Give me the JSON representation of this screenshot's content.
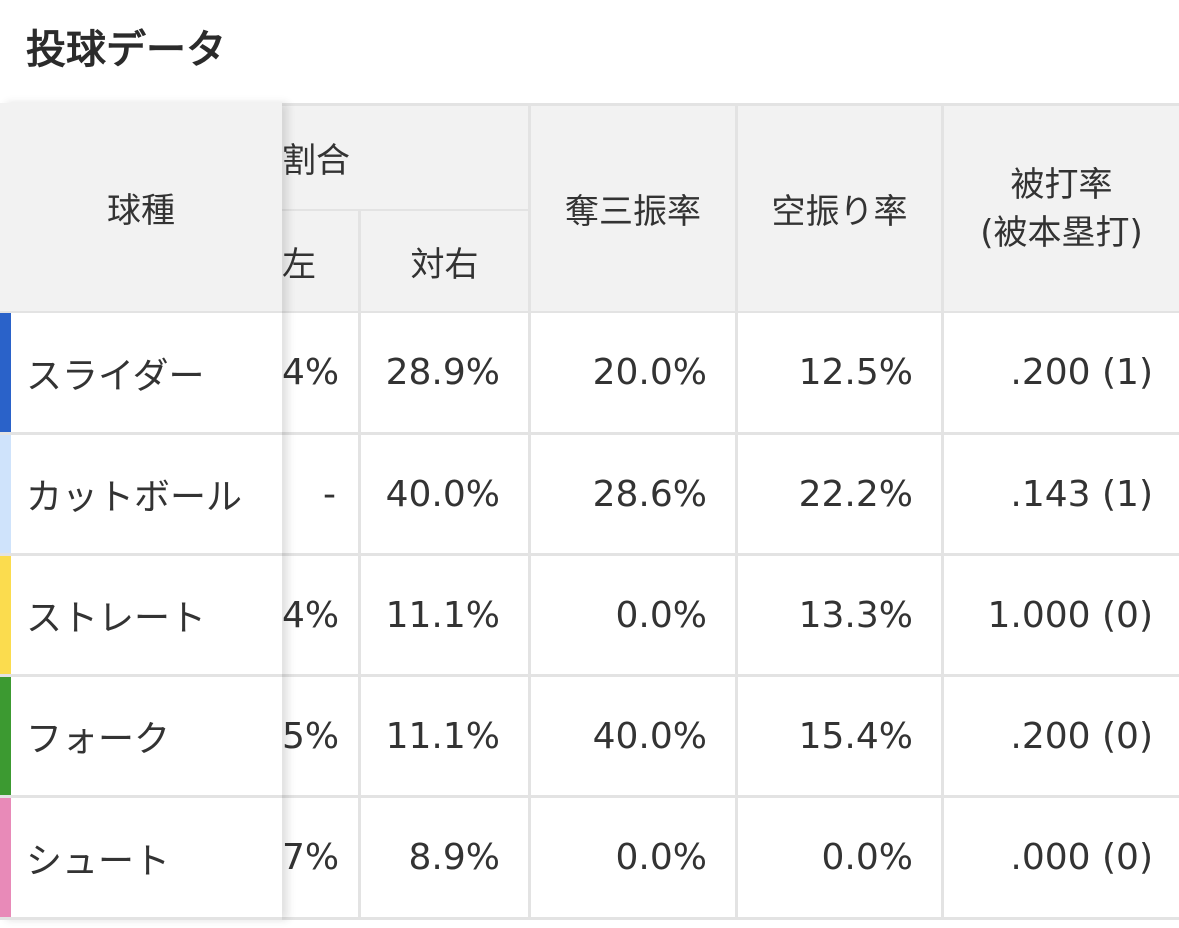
{
  "title": "投球データ",
  "header": {
    "pitch_type": "球種",
    "ratio_group": "割合",
    "vs_left": "左",
    "vs_right": "対右",
    "strikeout_rate": "奪三振率",
    "whiff_rate": "空振り率",
    "batting_avg_line1": "被打率",
    "batting_avg_line2": "(被本塁打)"
  },
  "rows": [
    {
      "pitch": "スライダー",
      "color": "#2a62c9",
      "vs_left": "4%",
      "vs_right": "28.9%",
      "strikeout": "20.0%",
      "whiff": "12.5%",
      "avg": ".200 (1)"
    },
    {
      "pitch": "カットボール",
      "color": "#cfe3fb",
      "vs_left": "-",
      "vs_right": "40.0%",
      "strikeout": "28.6%",
      "whiff": "22.2%",
      "avg": ".143 (1)"
    },
    {
      "pitch": "ストレート",
      "color": "#fbdc4e",
      "vs_left": "4%",
      "vs_right": "11.1%",
      "strikeout": "0.0%",
      "whiff": "13.3%",
      "avg": "1.000 (0)"
    },
    {
      "pitch": "フォーク",
      "color": "#3c9a31",
      "vs_left": "5%",
      "vs_right": "11.1%",
      "strikeout": "40.0%",
      "whiff": "15.4%",
      "avg": ".200 (0)"
    },
    {
      "pitch": "シュート",
      "color": "#e88ab8",
      "vs_left": "7%",
      "vs_right": "8.9%",
      "strikeout": "0.0%",
      "whiff": "0.0%",
      "avg": ".000 (0)"
    }
  ]
}
